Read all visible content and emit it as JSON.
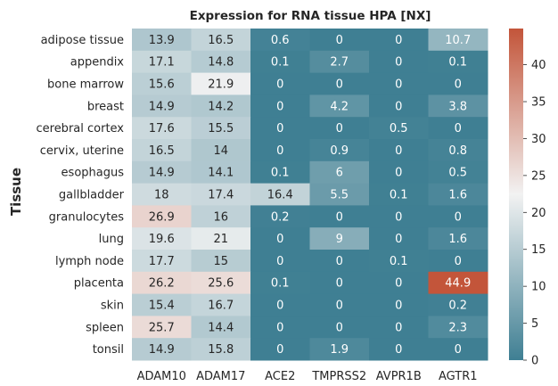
{
  "chart_data": {
    "type": "heatmap",
    "title": "Expression for RNA tissue HPA [NX]",
    "xlabel": "",
    "ylabel": "Tissue",
    "columns": [
      "ADAM10",
      "ADAM17",
      "ACE2",
      "TMPRSS2",
      "AVPR1B",
      "AGTR1"
    ],
    "rows": [
      "adipose tissue",
      "appendix",
      "bone marrow",
      "breast",
      "cerebral cortex",
      "cervix, uterine",
      "esophagus",
      "gallbladder",
      "granulocytes",
      "lung",
      "lymph node",
      "placenta",
      "skin",
      "spleen",
      "tonsil"
    ],
    "values": [
      [
        13.9,
        16.5,
        0.6,
        0,
        0,
        10.7
      ],
      [
        17.1,
        14.8,
        0.1,
        2.7,
        0,
        0.1
      ],
      [
        15.6,
        21.9,
        0,
        0,
        0,
        0
      ],
      [
        14.9,
        14.2,
        0,
        4.2,
        0,
        3.8
      ],
      [
        17.6,
        15.5,
        0,
        0,
        0.5,
        0
      ],
      [
        16.5,
        14,
        0,
        0.9,
        0,
        0.8
      ],
      [
        14.9,
        14.1,
        0.1,
        6,
        0,
        0.5
      ],
      [
        18,
        17.4,
        16.4,
        5.5,
        0.1,
        1.6
      ],
      [
        26.9,
        16,
        0.2,
        0,
        0,
        0
      ],
      [
        19.6,
        21,
        0,
        9,
        0,
        1.6
      ],
      [
        17.7,
        15,
        0,
        0,
        0.1,
        0
      ],
      [
        26.2,
        25.6,
        0.1,
        0,
        0,
        44.9
      ],
      [
        15.4,
        16.7,
        0,
        0,
        0,
        0.2
      ],
      [
        25.7,
        14.4,
        0,
        0,
        0,
        2.3
      ],
      [
        14.9,
        15.8,
        0,
        1.9,
        0,
        0
      ]
    ],
    "colorbar": {
      "min": 0,
      "max": 44.9,
      "ticks": [
        0,
        5,
        10,
        15,
        20,
        25,
        30,
        35,
        40
      ],
      "colors": [
        "#3f7f93",
        "#f2f2f2",
        "#c3553a"
      ]
    },
    "grid": false,
    "legend": "colorbar-right"
  }
}
